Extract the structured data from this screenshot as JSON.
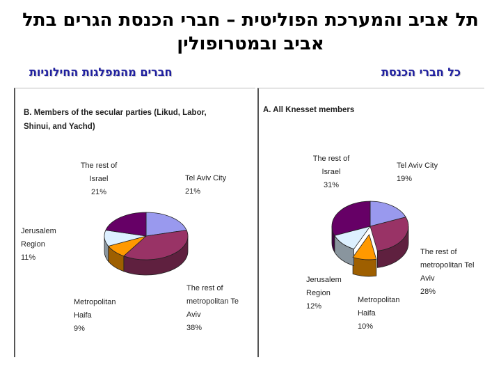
{
  "slide": {
    "title_line1": "תל אביב והמערכת הפוליטית – חברי הכנסת הגרים בתל",
    "title_line2": "אביב ובמטרופולין",
    "label_left": "חברים מהמפלגות החילוניות",
    "label_right": "כל חברי הכנסת"
  },
  "chart_data": [
    {
      "type": "pie",
      "title_lines": [
        "B. Members of the secular parties (Likud, Labor,",
        "Shinui, and Yachd)"
      ],
      "labels": [
        [
          "Tel Aviv City",
          "21%"
        ],
        [
          "The rest of",
          "metropolitan Te",
          "Aviv",
          "38%"
        ],
        [
          "Metropolitan",
          "Haifa",
          "9%"
        ],
        [
          "Jerusalem",
          "Region",
          "11%"
        ],
        [
          "The rest of",
          "Israel",
          "21%"
        ]
      ],
      "categories": [
        "Tel Aviv City",
        "The rest of metropolitan Tel Aviv",
        "Metropolitan Haifa",
        "Jerusalem Region",
        "The rest of Israel"
      ],
      "values": [
        21,
        38,
        9,
        11,
        21
      ],
      "colors": [
        "#9999ee",
        "#993366",
        "#ff9900",
        "#ddf0ff",
        "#660066"
      ],
      "exploded": [
        false,
        false,
        false,
        false,
        false
      ]
    },
    {
      "type": "pie",
      "title_lines": [
        "A. All Knesset members"
      ],
      "labels": [
        [
          "Tel Aviv City",
          "19%"
        ],
        [
          "The rest of",
          "metropolitan Tel",
          "Aviv",
          "28%"
        ],
        [
          "Metropolitan",
          "Haifa",
          "10%"
        ],
        [
          "Jerusalem",
          "Region",
          "12%"
        ],
        [
          "The rest of",
          "Israel",
          "31%"
        ]
      ],
      "categories": [
        "Tel Aviv City",
        "The rest of metropolitan Tel Aviv",
        "Metropolitan Haifa",
        "Jerusalem Region",
        "The rest of Israel"
      ],
      "values": [
        19,
        28,
        10,
        12,
        31
      ],
      "colors": [
        "#9999ee",
        "#993366",
        "#ff9900",
        "#ddf0ff",
        "#660066"
      ],
      "exploded": [
        false,
        false,
        true,
        false,
        false
      ]
    }
  ]
}
